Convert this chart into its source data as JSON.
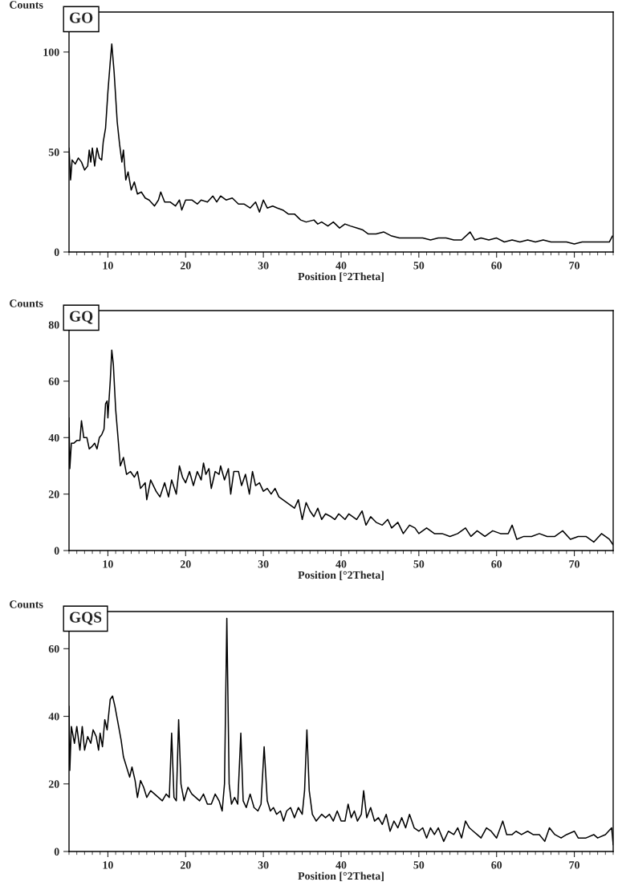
{
  "chart_data": [
    {
      "type": "line",
      "title": "GO",
      "xlabel": "Position [°2Theta]",
      "ylabel": "Counts",
      "color": "#000000",
      "xlim": [
        5,
        75
      ],
      "ylim": [
        0,
        120
      ],
      "xticks": [
        10,
        20,
        30,
        40,
        50,
        60,
        70
      ],
      "yticks": [
        0,
        50,
        100
      ],
      "grid": false,
      "legend": false,
      "x": [
        5.0,
        5.2,
        5.4,
        5.8,
        6.2,
        6.6,
        7.0,
        7.4,
        7.6,
        7.8,
        8.0,
        8.3,
        8.6,
        8.9,
        9.2,
        9.4,
        9.7,
        10.0,
        10.3,
        10.5,
        10.8,
        11.2,
        11.5,
        11.8,
        12.0,
        12.3,
        12.6,
        13.0,
        13.4,
        13.8,
        14.3,
        14.8,
        15.3,
        16.0,
        16.5,
        16.8,
        17.3,
        18.0,
        18.7,
        19.2,
        19.5,
        20.0,
        20.8,
        21.5,
        22.0,
        22.8,
        23.5,
        24.0,
        24.5,
        25.2,
        26.0,
        26.8,
        27.5,
        28.3,
        29.0,
        29.5,
        30.0,
        30.5,
        31.2,
        31.8,
        32.5,
        33.2,
        34.0,
        34.8,
        35.5,
        36.5,
        37.0,
        37.5,
        38.3,
        39.0,
        39.8,
        40.5,
        41.2,
        42.0,
        42.8,
        43.5,
        44.5,
        45.5,
        46.5,
        47.5,
        48.5,
        49.5,
        50.5,
        51.5,
        52.5,
        53.5,
        54.5,
        55.5,
        56.6,
        57.2,
        58.0,
        59.0,
        60.0,
        61.0,
        62.0,
        63.0,
        64.0,
        65.0,
        66.0,
        67.0,
        68.0,
        69.0,
        70.0,
        71.0,
        72.0,
        73.0,
        74.5,
        74.9
      ],
      "values": [
        52,
        36,
        46,
        44,
        47,
        45,
        41,
        43,
        51,
        45,
        52,
        43,
        52,
        47,
        46,
        55,
        62,
        80,
        95,
        104,
        90,
        65,
        54,
        45,
        51,
        36,
        40,
        31,
        35,
        29,
        30,
        27,
        26,
        23,
        26,
        30,
        25,
        25,
        23,
        26,
        21,
        26,
        26,
        24,
        26,
        25,
        28,
        25,
        28,
        26,
        27,
        24,
        24,
        22,
        25,
        20,
        26,
        22,
        23,
        22,
        21,
        19,
        19,
        16,
        15,
        16,
        14,
        15,
        13,
        15,
        12,
        14,
        13,
        12,
        11,
        9,
        9,
        10,
        8,
        7,
        7,
        7,
        7,
        6,
        7,
        7,
        6,
        6,
        10,
        6,
        7,
        6,
        7,
        5,
        6,
        5,
        6,
        5,
        6,
        5,
        5,
        5,
        4,
        5,
        5,
        5,
        5,
        8
      ]
    },
    {
      "type": "line",
      "title": "GQ",
      "xlabel": "Position [°2Theta]",
      "ylabel": "Counts",
      "color": "#000000",
      "xlim": [
        5,
        75
      ],
      "ylim": [
        0,
        85
      ],
      "xticks": [
        10,
        20,
        30,
        40,
        50,
        60,
        70
      ],
      "yticks": [
        0,
        20,
        40,
        60,
        80
      ],
      "grid": false,
      "legend": false,
      "x": [
        5.0,
        5.1,
        5.3,
        5.6,
        6.0,
        6.4,
        6.6,
        6.9,
        7.3,
        7.6,
        8.0,
        8.3,
        8.6,
        8.9,
        9.2,
        9.5,
        9.7,
        9.9,
        10.0,
        10.3,
        10.5,
        10.7,
        11.0,
        11.3,
        11.6,
        12.0,
        12.4,
        12.9,
        13.4,
        13.8,
        14.2,
        14.8,
        15.0,
        15.5,
        16.2,
        16.7,
        17.3,
        17.8,
        18.2,
        18.8,
        19.2,
        19.6,
        20.0,
        20.5,
        21.0,
        21.5,
        22.0,
        22.3,
        22.6,
        23.0,
        23.3,
        23.8,
        24.3,
        24.5,
        25.0,
        25.5,
        25.8,
        26.2,
        26.8,
        27.2,
        27.7,
        28.2,
        28.6,
        29.0,
        29.5,
        30.0,
        30.5,
        31.0,
        31.5,
        32.0,
        32.5,
        33.0,
        33.5,
        34.0,
        34.5,
        35.0,
        35.5,
        36.0,
        36.5,
        37.0,
        37.5,
        38.0,
        38.7,
        39.2,
        39.7,
        40.5,
        41.0,
        41.5,
        42.0,
        42.7,
        43.2,
        43.8,
        44.5,
        45.3,
        46.0,
        46.5,
        47.3,
        48.0,
        48.8,
        49.5,
        50.0,
        51.0,
        52.0,
        53.0,
        54.0,
        55.0,
        56.0,
        56.7,
        57.5,
        58.5,
        59.5,
        60.5,
        61.5,
        62.0,
        62.6,
        63.5,
        64.5,
        65.5,
        66.5,
        67.5,
        68.5,
        69.5,
        70.5,
        71.5,
        72.5,
        73.5,
        74.5,
        75.0
      ],
      "values": [
        47,
        29,
        38,
        38,
        39,
        39,
        46,
        40,
        40,
        36,
        37,
        38,
        36,
        40,
        41,
        43,
        52,
        53,
        47,
        60,
        71,
        66,
        50,
        40,
        30,
        33,
        27,
        28,
        26,
        28,
        22,
        24,
        18,
        25,
        21,
        19,
        24,
        19,
        25,
        20,
        30,
        26,
        24,
        28,
        23,
        28,
        25,
        31,
        27,
        29,
        22,
        28,
        27,
        30,
        25,
        29,
        20,
        28,
        28,
        23,
        27,
        20,
        28,
        23,
        24,
        21,
        22,
        20,
        22,
        19,
        18,
        17,
        16,
        15,
        18,
        11,
        17,
        14,
        12,
        15,
        11,
        13,
        12,
        11,
        13,
        11,
        13,
        12,
        11,
        14,
        9,
        12,
        10,
        9,
        11,
        8,
        10,
        6,
        9,
        8,
        6,
        8,
        6,
        6,
        5,
        6,
        8,
        5,
        7,
        5,
        7,
        6,
        6,
        9,
        4,
        5,
        5,
        6,
        5,
        5,
        7,
        4,
        5,
        5,
        3,
        6,
        4,
        2
      ]
    },
    {
      "type": "line",
      "title": "GQS",
      "xlabel": "Position [°2Theta]",
      "ylabel": "Counts",
      "color": "#000000",
      "xlim": [
        5,
        75
      ],
      "ylim": [
        0,
        71
      ],
      "xticks": [
        10,
        20,
        30,
        40,
        50,
        60,
        70
      ],
      "yticks": [
        0,
        20,
        40,
        60
      ],
      "grid": false,
      "legend": false,
      "x": [
        5.0,
        5.1,
        5.3,
        5.7,
        6.0,
        6.4,
        6.7,
        7.0,
        7.4,
        7.8,
        8.1,
        8.5,
        8.8,
        9.0,
        9.3,
        9.6,
        9.9,
        10.3,
        10.6,
        10.9,
        11.3,
        11.7,
        12.0,
        12.4,
        12.8,
        13.1,
        13.5,
        13.8,
        14.2,
        14.6,
        15.0,
        15.5,
        16.0,
        16.5,
        17.0,
        17.5,
        17.9,
        18.2,
        18.5,
        18.8,
        19.1,
        19.4,
        19.8,
        20.3,
        20.8,
        21.3,
        21.8,
        22.3,
        22.8,
        23.3,
        23.8,
        24.3,
        24.7,
        25.0,
        25.3,
        25.6,
        25.9,
        26.3,
        26.7,
        27.1,
        27.4,
        27.8,
        28.3,
        28.8,
        29.3,
        29.7,
        30.1,
        30.5,
        30.9,
        31.3,
        31.7,
        32.2,
        32.6,
        33.0,
        33.5,
        34.0,
        34.5,
        35.0,
        35.3,
        35.6,
        35.9,
        36.3,
        36.8,
        37.5,
        38.0,
        38.5,
        39.0,
        39.5,
        40.0,
        40.5,
        40.9,
        41.3,
        41.7,
        42.1,
        42.6,
        42.9,
        43.3,
        43.8,
        44.3,
        44.8,
        45.3,
        45.8,
        46.3,
        46.8,
        47.3,
        47.8,
        48.3,
        48.8,
        49.4,
        50.0,
        50.5,
        51.0,
        51.5,
        52.0,
        52.5,
        53.2,
        53.8,
        54.5,
        55.0,
        55.5,
        56.0,
        56.5,
        57.0,
        57.5,
        58.0,
        58.7,
        59.3,
        60.0,
        60.8,
        61.3,
        62.0,
        62.5,
        63.2,
        64.0,
        64.7,
        65.5,
        66.2,
        66.8,
        67.5,
        68.3,
        69.0,
        70.0,
        70.5,
        71.5,
        72.5,
        73.0,
        74.0,
        74.8,
        75.0
      ],
      "values": [
        43,
        24,
        37,
        32,
        37,
        30,
        37,
        30,
        34,
        32,
        36,
        34,
        30,
        35,
        31,
        39,
        36,
        45,
        46,
        43,
        38,
        33,
        28,
        25,
        22,
        25,
        21,
        16,
        21,
        19,
        16,
        18,
        17,
        16,
        15,
        17,
        16,
        35,
        16,
        15,
        39,
        20,
        15,
        19,
        17,
        16,
        15,
        17,
        14,
        14,
        17,
        15,
        12,
        20,
        69,
        20,
        14,
        16,
        14,
        35,
        15,
        13,
        17,
        13,
        12,
        14,
        31,
        15,
        12,
        13,
        11,
        12,
        9,
        12,
        13,
        10,
        13,
        11,
        18,
        36,
        18,
        11,
        9,
        11,
        10,
        11,
        9,
        12,
        9,
        9,
        14,
        10,
        12,
        9,
        11,
        18,
        10,
        13,
        9,
        10,
        8,
        11,
        6,
        9,
        7,
        10,
        7,
        11,
        7,
        6,
        7,
        4,
        7,
        5,
        7,
        3,
        6,
        5,
        7,
        4,
        9,
        7,
        6,
        5,
        4,
        7,
        6,
        4,
        9,
        5,
        5,
        6,
        5,
        6,
        5,
        5,
        3,
        7,
        5,
        4,
        5,
        6,
        4,
        4,
        5,
        4,
        5,
        7,
        2
      ]
    }
  ]
}
